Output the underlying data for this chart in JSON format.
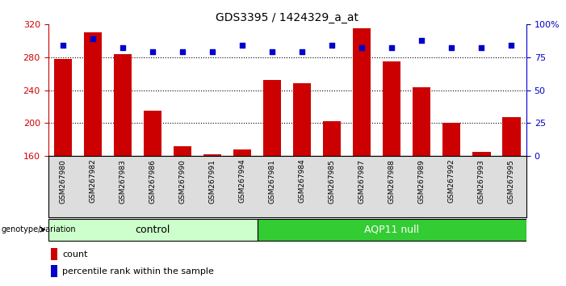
{
  "title": "GDS3395 / 1424329_a_at",
  "samples": [
    "GSM267980",
    "GSM267982",
    "GSM267983",
    "GSM267986",
    "GSM267990",
    "GSM267991",
    "GSM267994",
    "GSM267981",
    "GSM267984",
    "GSM267985",
    "GSM267987",
    "GSM267988",
    "GSM267989",
    "GSM267992",
    "GSM267993",
    "GSM267995"
  ],
  "counts": [
    278,
    310,
    284,
    215,
    172,
    162,
    168,
    252,
    248,
    202,
    315,
    275,
    243,
    200,
    165,
    207
  ],
  "percentiles": [
    84,
    89,
    82,
    79,
    79,
    79,
    84,
    79,
    79,
    84,
    82,
    82,
    88,
    82,
    82,
    84
  ],
  "control_count": 7,
  "aqp11_count": 9,
  "ylim_left": [
    160,
    320
  ],
  "ylim_right": [
    0,
    100
  ],
  "yticks_left": [
    160,
    200,
    240,
    280,
    320
  ],
  "yticks_right": [
    0,
    25,
    50,
    75,
    100
  ],
  "bar_color": "#cc0000",
  "dot_color": "#0000cc",
  "control_bg": "#ccffcc",
  "aqp11_bg": "#33cc33",
  "bg_color": "#ffffff",
  "xtick_bg": "#dddddd",
  "bar_width": 0.6,
  "legend_count_label": "count",
  "legend_pct_label": "percentile rank within the sample",
  "group_label": "genotype/variation",
  "control_label": "control",
  "aqp11_label": "AQP11 null",
  "gridline_values": [
    200,
    240,
    280
  ]
}
